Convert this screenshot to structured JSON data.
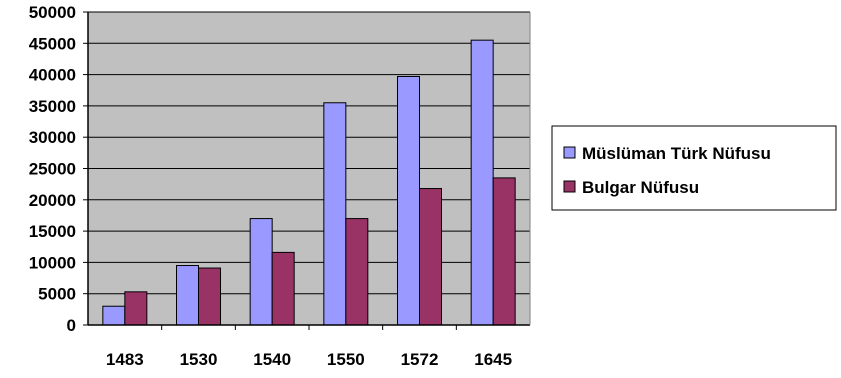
{
  "chart_data": {
    "type": "bar",
    "title": "",
    "xlabel": "",
    "ylabel": "",
    "categories": [
      "1483",
      "1530",
      "1540",
      "1550",
      "1572",
      "1645"
    ],
    "series": [
      {
        "name": "Müslüman Türk Nüfusu",
        "color": "#9999ff",
        "values": [
          3000,
          9500,
          17000,
          35500,
          39700,
          45500
        ]
      },
      {
        "name": "Bulgar Nüfusu",
        "color": "#993366",
        "values": [
          5300,
          9100,
          11600,
          17000,
          21800,
          23500
        ]
      }
    ],
    "ylim": [
      0,
      50000
    ],
    "yticks": [
      "0",
      "5000",
      "10000",
      "15000",
      "20000",
      "25000",
      "30000",
      "35000",
      "40000",
      "45000",
      "50000"
    ],
    "grid": true,
    "plot_background": "#c0c0c0",
    "legend_position": "right"
  }
}
